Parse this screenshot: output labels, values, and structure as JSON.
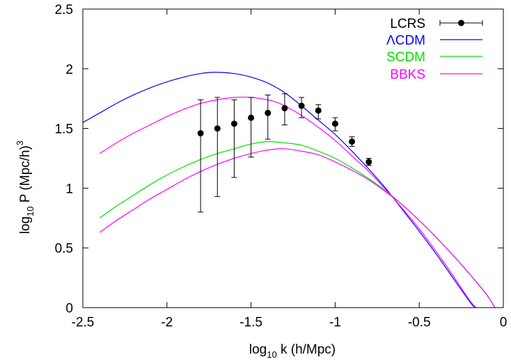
{
  "chart_data": {
    "type": "scatter",
    "title": "",
    "xlabel": {
      "main": "log",
      "sub": "10",
      "rest": " k (h/Mpc)"
    },
    "ylabel": {
      "main": "log",
      "sub": "10",
      "rest": " P (Mpc/h)",
      "sup": "3"
    },
    "xlim": [
      -2.5,
      0
    ],
    "ylim": [
      0,
      2.5
    ],
    "x_ticks": [
      -2.5,
      -2,
      -1.5,
      -1,
      -0.5,
      0
    ],
    "x_tick_labels": [
      "-2.5",
      "-2",
      "-1.5",
      "-1",
      "-0.5",
      "0"
    ],
    "y_ticks": [
      0,
      0.5,
      1,
      1.5,
      2,
      2.5
    ],
    "y_tick_labels": [
      "0",
      "0.5",
      "1",
      "1.5",
      "2",
      "2.5"
    ],
    "grid": false,
    "legend_position": "top-right",
    "points": {
      "name": "LCRS",
      "color": "#000000",
      "x": [
        -1.8,
        -1.7,
        -1.6,
        -1.5,
        -1.4,
        -1.3,
        -1.2,
        -1.1,
        -1.0,
        -0.9,
        -0.8
      ],
      "y": [
        1.46,
        1.5,
        1.54,
        1.59,
        1.63,
        1.67,
        1.69,
        1.65,
        1.54,
        1.39,
        1.22
      ],
      "y_low": [
        0.8,
        0.93,
        1.09,
        1.26,
        1.41,
        1.53,
        1.59,
        1.58,
        1.48,
        1.35,
        1.19
      ],
      "y_high": [
        1.74,
        1.76,
        1.74,
        1.76,
        1.78,
        1.79,
        1.76,
        1.7,
        1.59,
        1.43,
        1.25
      ]
    },
    "series": [
      {
        "name": "ΛCDM",
        "color": "#0000ff",
        "x": [
          -2.5,
          -2.4,
          -2.3,
          -2.2,
          -2.1,
          -2.0,
          -1.9,
          -1.8,
          -1.72,
          -1.6,
          -1.5,
          -1.4,
          -1.3,
          -1.2,
          -1.1,
          -1.0,
          -0.9,
          -0.8,
          -0.7,
          -0.6,
          -0.5,
          -0.4,
          -0.3,
          -0.2,
          -0.17
        ],
        "y": [
          1.55,
          1.63,
          1.71,
          1.78,
          1.84,
          1.89,
          1.93,
          1.96,
          1.97,
          1.96,
          1.93,
          1.88,
          1.8,
          1.69,
          1.57,
          1.45,
          1.31,
          1.16,
          1.0,
          0.82,
          0.64,
          0.45,
          0.25,
          0.05,
          0.0
        ]
      },
      {
        "name": "SCDM",
        "color": "#00e000",
        "x": [
          -2.4,
          -2.3,
          -2.2,
          -2.1,
          -2.0,
          -1.9,
          -1.8,
          -1.7,
          -1.6,
          -1.5,
          -1.4,
          -1.3,
          -1.2,
          -1.1,
          -1.0,
          -0.9,
          -0.8,
          -0.7,
          -0.6,
          -0.5,
          -0.4,
          -0.3,
          -0.2,
          -0.1,
          -0.05
        ],
        "y": [
          0.75,
          0.85,
          0.94,
          1.03,
          1.11,
          1.18,
          1.24,
          1.29,
          1.33,
          1.37,
          1.39,
          1.38,
          1.36,
          1.31,
          1.25,
          1.17,
          1.08,
          0.98,
          0.86,
          0.73,
          0.59,
          0.44,
          0.28,
          0.11,
          0.0
        ]
      },
      {
        "name": "BBKS",
        "color": "#ff00ff",
        "x": [
          -2.4,
          -2.3,
          -2.2,
          -2.1,
          -2.0,
          -1.9,
          -1.8,
          -1.7,
          -1.6,
          -1.5,
          -1.4,
          -1.35,
          -1.3,
          -1.2,
          -1.1,
          -1.0,
          -0.9,
          -0.8,
          -0.7,
          -0.6,
          -0.5,
          -0.4,
          -0.3,
          -0.2,
          -0.16
        ],
        "y": [
          1.29,
          1.38,
          1.46,
          1.53,
          1.6,
          1.66,
          1.71,
          1.74,
          1.76,
          1.76,
          1.74,
          1.72,
          1.69,
          1.61,
          1.51,
          1.4,
          1.27,
          1.14,
          0.99,
          0.83,
          0.66,
          0.47,
          0.27,
          0.06,
          0.0
        ]
      },
      {
        "name": "",
        "legend": false,
        "color": "#ff00ff",
        "x": [
          -2.4,
          -2.3,
          -2.2,
          -2.1,
          -2.0,
          -1.9,
          -1.8,
          -1.7,
          -1.6,
          -1.5,
          -1.4,
          -1.3,
          -1.2,
          -1.1,
          -1.0,
          -0.9,
          -0.8,
          -0.7,
          -0.6,
          -0.5,
          -0.4,
          -0.3,
          -0.2,
          -0.1,
          -0.05
        ],
        "y": [
          0.63,
          0.73,
          0.82,
          0.91,
          0.99,
          1.07,
          1.14,
          1.2,
          1.25,
          1.29,
          1.32,
          1.33,
          1.31,
          1.28,
          1.22,
          1.15,
          1.07,
          0.97,
          0.86,
          0.73,
          0.59,
          0.44,
          0.28,
          0.11,
          0.0
        ]
      }
    ]
  }
}
